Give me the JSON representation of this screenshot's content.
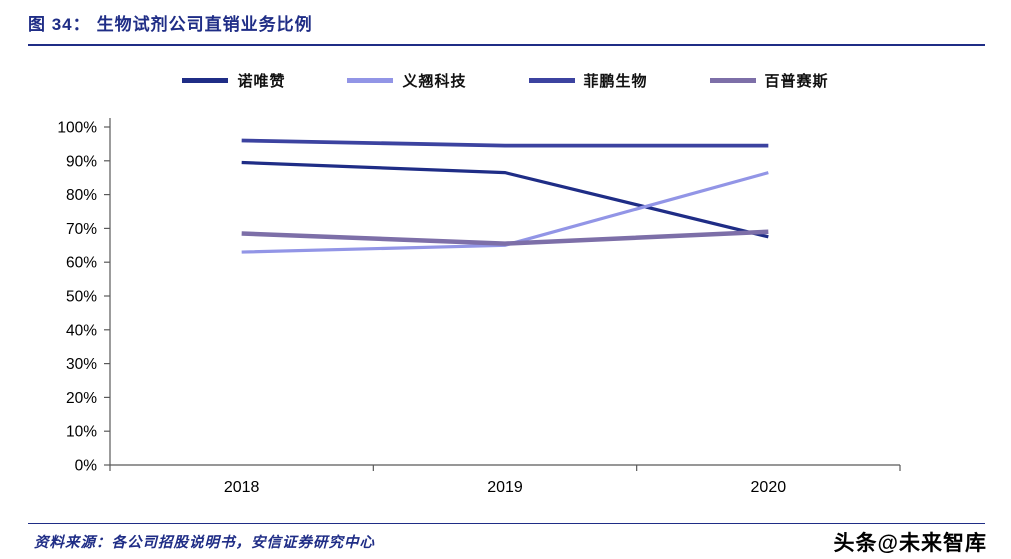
{
  "header": {
    "figure_label": "图 34：",
    "title": "生物试剂公司直销业务比例"
  },
  "chart_data": {
    "type": "line",
    "title": "生物试剂公司直销业务比例",
    "categories": [
      "2018",
      "2019",
      "2020"
    ],
    "series": [
      {
        "name": "诺唯赞",
        "color": "#1f2d86",
        "stroke_width": 3.2,
        "values": [
          89.5,
          86.5,
          67.5
        ]
      },
      {
        "name": "义翘科技",
        "color": "#9295e6",
        "stroke_width": 3.2,
        "values": [
          63,
          65,
          86.5
        ]
      },
      {
        "name": "菲鹏生物",
        "color": "#3c43a0",
        "stroke_width": 3.8,
        "values": [
          96,
          94.5,
          94.5
        ]
      },
      {
        "name": "百普赛斯",
        "color": "#7d6fa8",
        "stroke_width": 4.5,
        "values": [
          68.5,
          65.5,
          69
        ]
      }
    ],
    "xlabel": "",
    "ylabel": "",
    "ylim": [
      0,
      100
    ],
    "ytick_step": 10,
    "ytick_format": "percent",
    "legend_position": "top",
    "grid": false
  },
  "footer": {
    "source": "资料来源：各公司招股说明书，安信证券研究中心",
    "watermark": "头条@未来智库"
  }
}
